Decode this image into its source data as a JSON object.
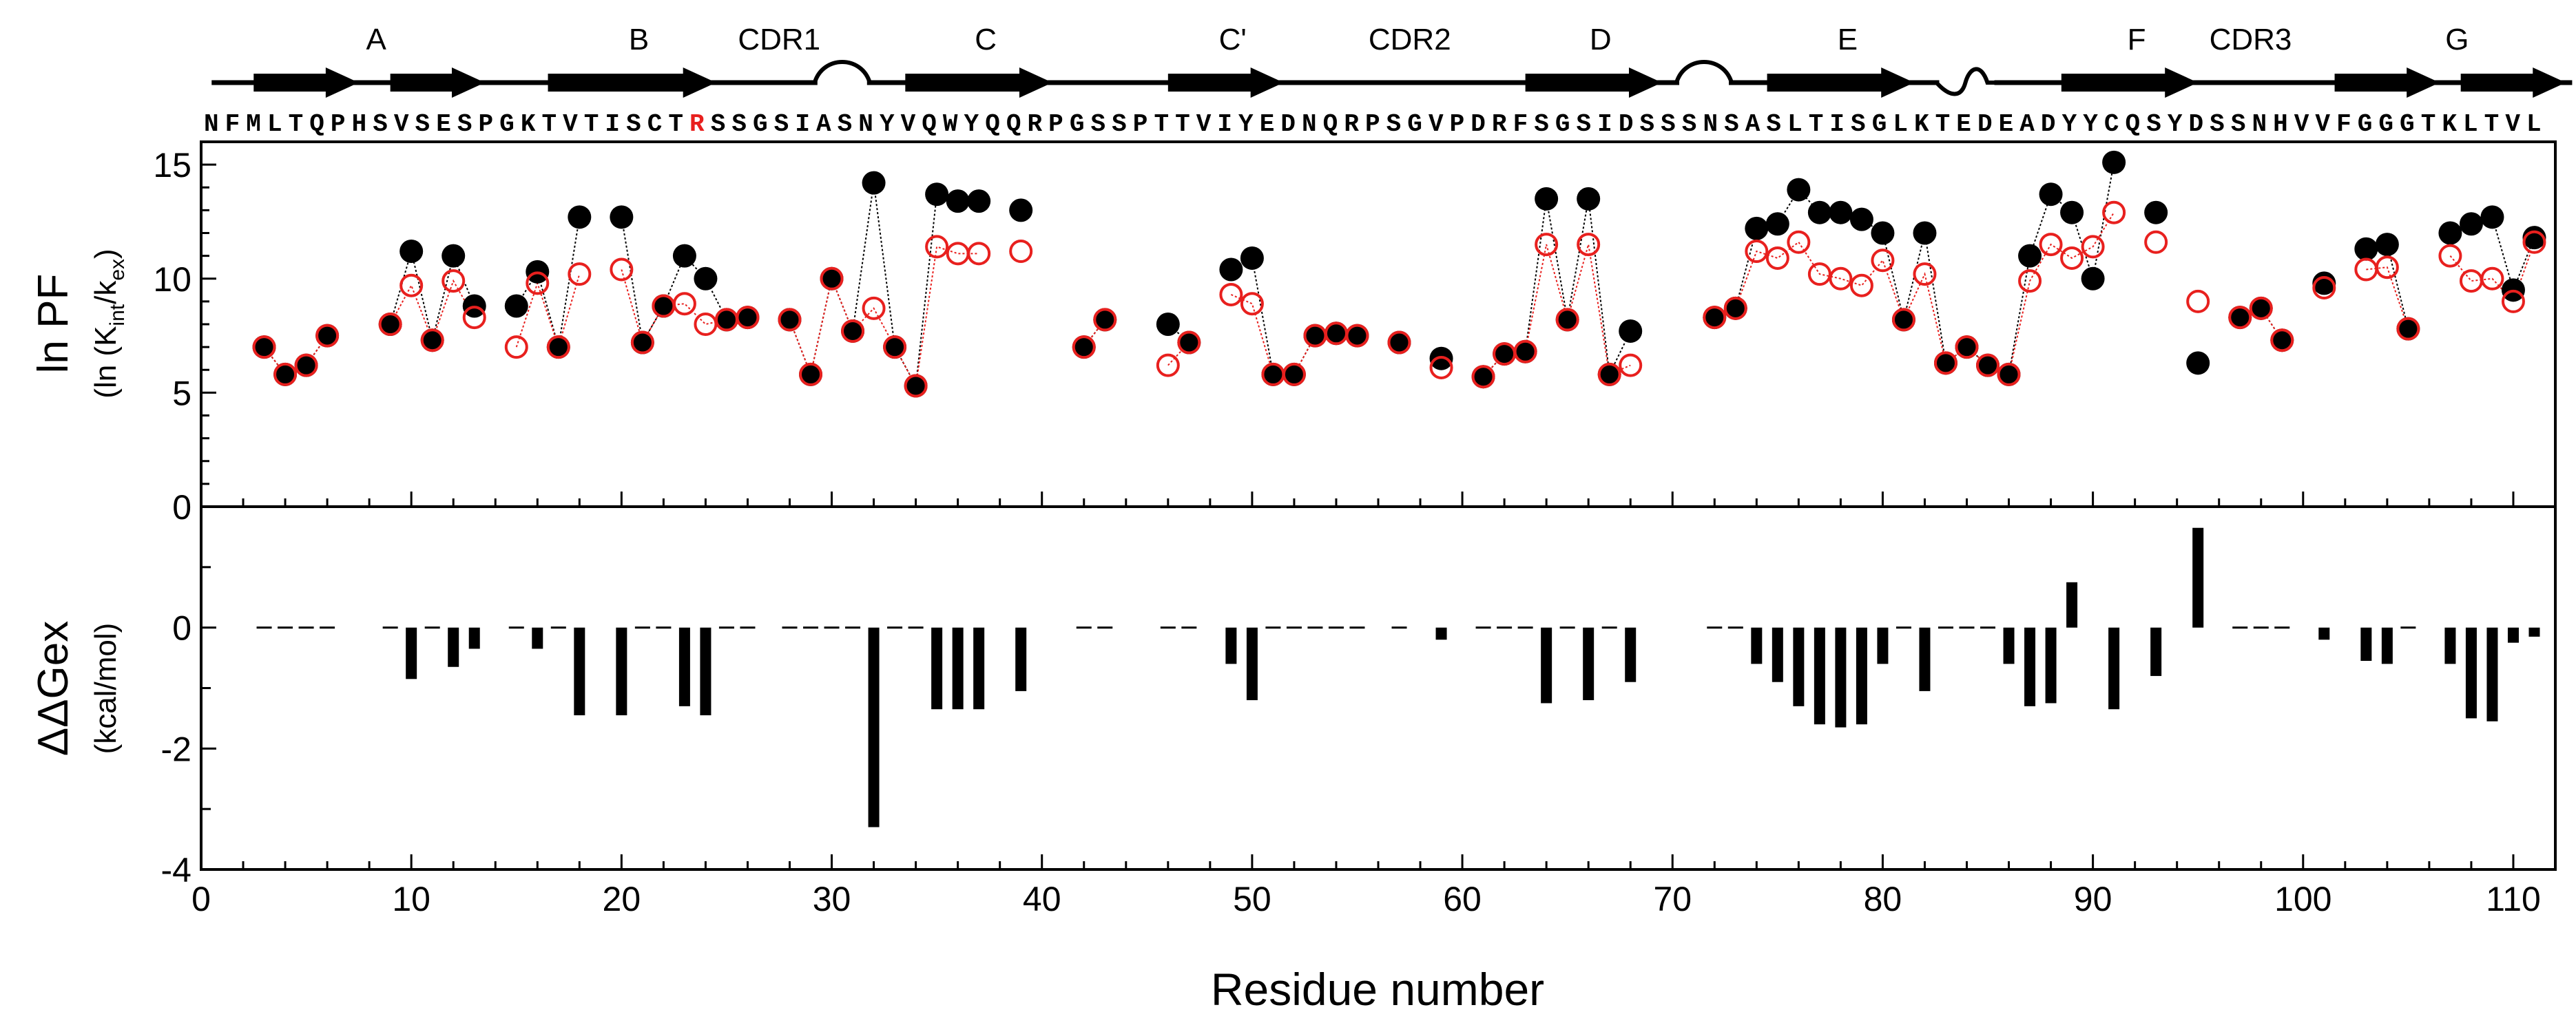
{
  "chart_data": [
    {
      "type": "scatter",
      "panel": "top",
      "ylabel": "ln PF",
      "ylabel_sub": "(ln (K",
      "ylabel_sub_int": "int",
      "ylabel_sub_mid": "/k",
      "ylabel_sub_ex": "ex",
      "ylabel_sub_end": ")",
      "ylim": [
        0,
        16
      ],
      "yticks": [
        0,
        5,
        10,
        15
      ],
      "xlim": [
        0,
        112
      ],
      "series": [
        {
          "name": "filled (black)",
          "color": "#000000",
          "points": [
            [
              3,
              7.0
            ],
            [
              4,
              5.8
            ],
            [
              5,
              6.2
            ],
            [
              6,
              7.5
            ],
            [
              9,
              8.0
            ],
            [
              10,
              11.2
            ],
            [
              11,
              7.3
            ],
            [
              12,
              11.0
            ],
            [
              13,
              8.8
            ],
            [
              15,
              8.8
            ],
            [
              16,
              10.3
            ],
            [
              17,
              7.0
            ],
            [
              18,
              12.7
            ],
            [
              20,
              12.7
            ],
            [
              21,
              7.2
            ],
            [
              22,
              8.8
            ],
            [
              23,
              11.0
            ],
            [
              24,
              10.0
            ],
            [
              25,
              8.2
            ],
            [
              26,
              8.3
            ],
            [
              28,
              8.2
            ],
            [
              29,
              5.8
            ],
            [
              30,
              10.0
            ],
            [
              31,
              7.7
            ],
            [
              32,
              14.2
            ],
            [
              33,
              7.0
            ],
            [
              34,
              5.3
            ],
            [
              35,
              13.7
            ],
            [
              36,
              13.4
            ],
            [
              37,
              13.4
            ],
            [
              39,
              13.0
            ],
            [
              42,
              7.0
            ],
            [
              43,
              8.2
            ],
            [
              46,
              8.0
            ],
            [
              47,
              7.2
            ],
            [
              49,
              10.4
            ],
            [
              50,
              10.9
            ],
            [
              51,
              5.8
            ],
            [
              52,
              5.8
            ],
            [
              53,
              7.5
            ],
            [
              54,
              7.6
            ],
            [
              55,
              7.5
            ],
            [
              57,
              7.2
            ],
            [
              59,
              6.5
            ],
            [
              61,
              5.7
            ],
            [
              62,
              6.7
            ],
            [
              63,
              6.8
            ],
            [
              64,
              13.5
            ],
            [
              65,
              8.2
            ],
            [
              66,
              13.5
            ],
            [
              67,
              5.8
            ],
            [
              68,
              7.7
            ],
            [
              72,
              8.3
            ],
            [
              73,
              8.7
            ],
            [
              74,
              12.2
            ],
            [
              75,
              12.4
            ],
            [
              76,
              13.9
            ],
            [
              77,
              12.9
            ],
            [
              78,
              12.9
            ],
            [
              79,
              12.6
            ],
            [
              80,
              12.0
            ],
            [
              81,
              8.2
            ],
            [
              82,
              12.0
            ],
            [
              83,
              6.3
            ],
            [
              84,
              7.0
            ],
            [
              85,
              6.2
            ],
            [
              86,
              5.8
            ],
            [
              87,
              11.0
            ],
            [
              88,
              13.7
            ],
            [
              89,
              12.9
            ],
            [
              90,
              10.0
            ],
            [
              91,
              15.1
            ],
            [
              93,
              12.9
            ],
            [
              95,
              6.3
            ],
            [
              97,
              8.3
            ],
            [
              98,
              8.7
            ],
            [
              99,
              7.3
            ],
            [
              101,
              9.8
            ],
            [
              103,
              11.3
            ],
            [
              104,
              11.5
            ],
            [
              105,
              7.8
            ],
            [
              107,
              12.0
            ],
            [
              108,
              12.4
            ],
            [
              109,
              12.7
            ],
            [
              110,
              9.5
            ],
            [
              111,
              11.8
            ]
          ]
        },
        {
          "name": "open (red)",
          "color": "#e8201e",
          "points": [
            [
              3,
              7.0
            ],
            [
              4,
              5.8
            ],
            [
              5,
              6.2
            ],
            [
              6,
              7.5
            ],
            [
              9,
              8.0
            ],
            [
              10,
              9.7
            ],
            [
              11,
              7.3
            ],
            [
              12,
              9.9
            ],
            [
              13,
              8.3
            ],
            [
              15,
              7.0
            ],
            [
              16,
              9.8
            ],
            [
              17,
              7.0
            ],
            [
              18,
              10.2
            ],
            [
              20,
              10.4
            ],
            [
              21,
              7.2
            ],
            [
              22,
              8.8
            ],
            [
              23,
              8.9
            ],
            [
              24,
              8.0
            ],
            [
              25,
              8.2
            ],
            [
              26,
              8.3
            ],
            [
              28,
              8.2
            ],
            [
              29,
              5.8
            ],
            [
              30,
              10.0
            ],
            [
              31,
              7.7
            ],
            [
              32,
              8.7
            ],
            [
              33,
              7.0
            ],
            [
              34,
              5.3
            ],
            [
              35,
              11.4
            ],
            [
              36,
              11.1
            ],
            [
              37,
              11.1
            ],
            [
              39,
              11.2
            ],
            [
              42,
              7.0
            ],
            [
              43,
              8.2
            ],
            [
              46,
              6.2
            ],
            [
              47,
              7.2
            ],
            [
              49,
              9.3
            ],
            [
              50,
              8.9
            ],
            [
              51,
              5.8
            ],
            [
              52,
              5.8
            ],
            [
              53,
              7.5
            ],
            [
              54,
              7.6
            ],
            [
              55,
              7.5
            ],
            [
              57,
              7.2
            ],
            [
              59,
              6.1
            ],
            [
              61,
              5.7
            ],
            [
              62,
              6.7
            ],
            [
              63,
              6.8
            ],
            [
              64,
              11.5
            ],
            [
              65,
              8.2
            ],
            [
              66,
              11.5
            ],
            [
              67,
              5.8
            ],
            [
              68,
              6.2
            ],
            [
              72,
              8.3
            ],
            [
              73,
              8.7
            ],
            [
              74,
              11.2
            ],
            [
              75,
              10.9
            ],
            [
              76,
              11.6
            ],
            [
              77,
              10.2
            ],
            [
              78,
              10.0
            ],
            [
              79,
              9.7
            ],
            [
              80,
              10.8
            ],
            [
              81,
              8.2
            ],
            [
              82,
              10.2
            ],
            [
              83,
              6.3
            ],
            [
              84,
              7.0
            ],
            [
              85,
              6.2
            ],
            [
              86,
              5.8
            ],
            [
              87,
              9.9
            ],
            [
              88,
              11.5
            ],
            [
              89,
              10.9
            ],
            [
              90,
              11.4
            ],
            [
              91,
              12.9
            ],
            [
              93,
              11.6
            ],
            [
              95,
              9.0
            ],
            [
              97,
              8.3
            ],
            [
              98,
              8.7
            ],
            [
              99,
              7.3
            ],
            [
              101,
              9.6
            ],
            [
              103,
              10.4
            ],
            [
              104,
              10.5
            ],
            [
              105,
              7.8
            ],
            [
              107,
              11.0
            ],
            [
              108,
              9.9
            ],
            [
              109,
              10.0
            ],
            [
              110,
              9.0
            ],
            [
              111,
              11.6
            ]
          ]
        }
      ]
    },
    {
      "type": "bar",
      "panel": "bottom",
      "ylabel": "ΔΔGex",
      "ylabel_sub": "(kcal/mol)",
      "xlabel": "Residue number",
      "ylim": [
        -4,
        2
      ],
      "yticks": [
        -4,
        -2,
        0
      ],
      "xlim": [
        0,
        112
      ],
      "xticks": [
        0,
        10,
        20,
        30,
        40,
        50,
        60,
        70,
        80,
        90,
        100,
        110
      ],
      "bars": [
        [
          10,
          -0.85
        ],
        [
          12,
          -0.65
        ],
        [
          13,
          -0.35
        ],
        [
          16,
          -0.35
        ],
        [
          18,
          -1.45
        ],
        [
          20,
          -1.45
        ],
        [
          23,
          -1.3
        ],
        [
          24,
          -1.45
        ],
        [
          32,
          -3.3
        ],
        [
          35,
          -1.35
        ],
        [
          36,
          -1.35
        ],
        [
          37,
          -1.35
        ],
        [
          39,
          -1.05
        ],
        [
          49,
          -0.6
        ],
        [
          50,
          -1.2
        ],
        [
          59,
          -0.2
        ],
        [
          64,
          -1.25
        ],
        [
          66,
          -1.2
        ],
        [
          68,
          -0.9
        ],
        [
          74,
          -0.6
        ],
        [
          75,
          -0.9
        ],
        [
          76,
          -1.3
        ],
        [
          77,
          -1.6
        ],
        [
          78,
          -1.65
        ],
        [
          79,
          -1.6
        ],
        [
          80,
          -0.6
        ],
        [
          82,
          -1.05
        ],
        [
          86,
          -0.6
        ],
        [
          87,
          -1.3
        ],
        [
          88,
          -1.25
        ],
        [
          89,
          0.75
        ],
        [
          91,
          -1.35
        ],
        [
          93,
          -0.8
        ],
        [
          95,
          1.65
        ],
        [
          101,
          -0.2
        ],
        [
          103,
          -0.55
        ],
        [
          104,
          -0.6
        ],
        [
          107,
          -0.6
        ],
        [
          108,
          -1.5
        ],
        [
          109,
          -1.55
        ],
        [
          110,
          -0.25
        ],
        [
          111,
          -0.15
        ]
      ],
      "zero_residues": [
        3,
        4,
        5,
        6,
        9,
        11,
        15,
        17,
        21,
        22,
        25,
        26,
        28,
        29,
        30,
        31,
        33,
        34,
        42,
        43,
        46,
        47,
        51,
        52,
        53,
        54,
        55,
        57,
        61,
        62,
        63,
        65,
        67,
        72,
        73,
        81,
        83,
        84,
        85,
        97,
        98,
        99,
        105
      ]
    }
  ],
  "secondary_structure": {
    "strands": [
      {
        "label": "A",
        "segments": [
          [
            2.5,
            7.5
          ],
          [
            9.0,
            13.5
          ]
        ]
      },
      {
        "label": "B",
        "segments": [
          [
            16.5,
            24.5
          ]
        ]
      },
      {
        "label": "C",
        "segments": [
          [
            33.5,
            40.5
          ]
        ]
      },
      {
        "label": "C'",
        "segments": [
          [
            46.0,
            51.5
          ]
        ]
      },
      {
        "label": "D",
        "segments": [
          [
            63.0,
            69.5
          ]
        ]
      },
      {
        "label": "E",
        "segments": [
          [
            74.5,
            81.5
          ]
        ]
      },
      {
        "label": "F",
        "segments": [
          [
            88.5,
            95.0
          ]
        ]
      },
      {
        "label": "G",
        "segments": [
          [
            101.5,
            106.5
          ],
          [
            107.5,
            112.5
          ]
        ]
      }
    ],
    "loop_labels": [
      {
        "label": "CDR1",
        "pos": 27.5
      },
      {
        "label": "CDR2",
        "pos": 57.5
      },
      {
        "label": "CDR3",
        "pos": 97.5
      }
    ],
    "turns": [
      {
        "kind": "arch",
        "pos": 30.5
      },
      {
        "kind": "arch",
        "pos": 71.5
      },
      {
        "kind": "wave",
        "pos": 84.0
      }
    ]
  },
  "sequence": {
    "text": "NFMLTQPHSVSESPGKTVTISCTRSSGSIASNYVQWYQQRPGSSPTTVIYEDNQRPSGVPDRFSGSIDSSSNSASLTISGLKTEDEADYYCQSYDSSNHVVFGGGTKLTVL",
    "highlight_index": 23,
    "highlight_color": "#e8201e"
  },
  "colors": {
    "filled": "#000000",
    "open": "#e8201e",
    "axis": "#000000"
  }
}
